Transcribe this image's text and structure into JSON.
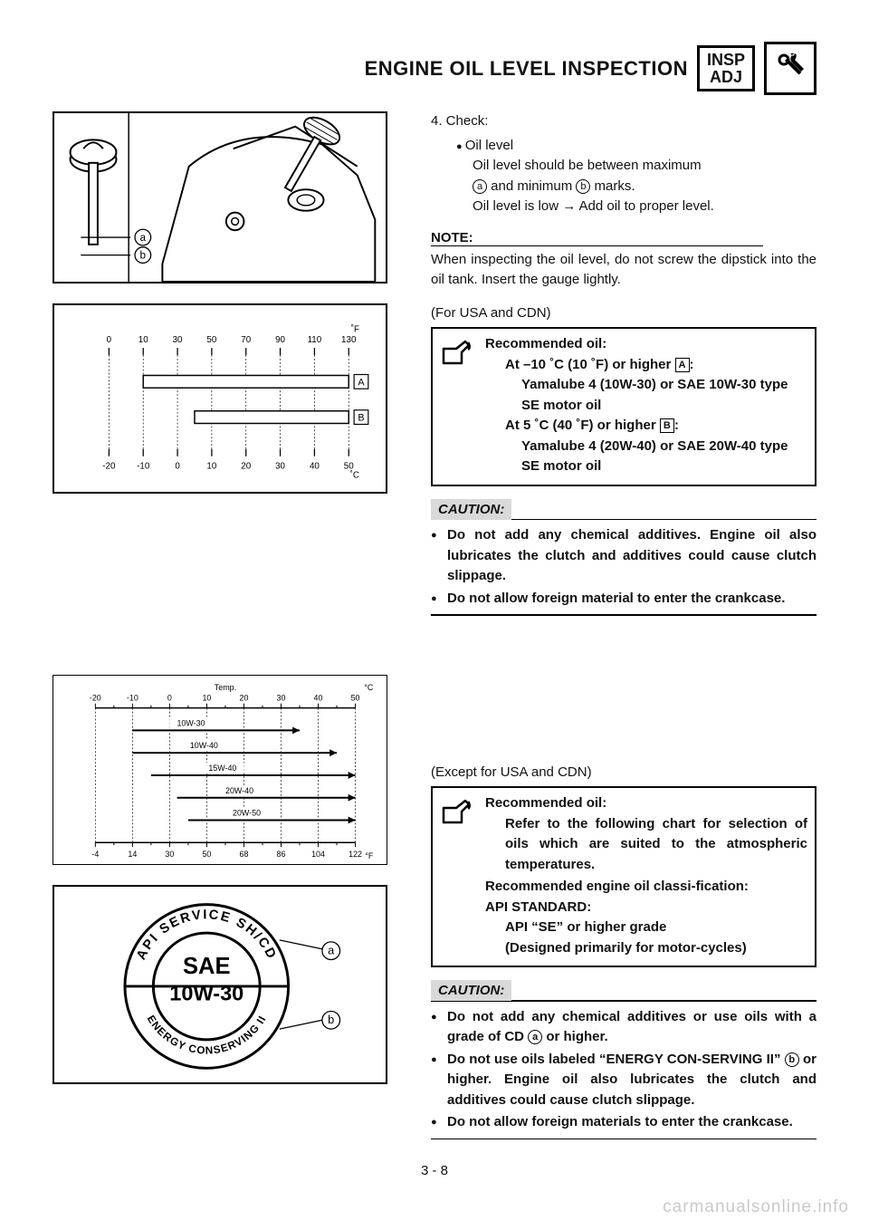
{
  "header": {
    "title": "ENGINE OIL LEVEL INSPECTION",
    "badge_top": "INSP",
    "badge_bot": "ADJ"
  },
  "step4": {
    "label": "4.   Check:",
    "bullet": "Oil level",
    "line1": "Oil level should be between maximum",
    "line2_pre": "",
    "line2_mark_a": "a",
    "line2_mid": " and minimum ",
    "line2_mark_b": "b",
    "line2_post": " marks.",
    "line3": "Oil level is low → Add oil to proper level."
  },
  "note": {
    "head": "NOTE:",
    "body": "When inspecting the oil level, do not screw the dipstick into the oil tank. Insert the gauge lightly."
  },
  "usa": {
    "head": "(For USA and CDN)",
    "box": {
      "t0": "Recommended oil:",
      "a_label": "At –10 ˚C (10 ˚F) or higher ",
      "a_mark": "A",
      "a_colon": ":",
      "a_line": "Yamalube 4 (10W-30) or SAE 10W-30 type SE motor oil",
      "b_label": "At 5 ˚C (40 ˚F) or higher ",
      "b_mark": "B",
      "b_colon": ":",
      "b_line": "Yamalube 4 (20W-40) or SAE 20W-40 type SE motor oil"
    },
    "caution_head": "CAUTION:",
    "caution_items": [
      "Do not add any chemical additives. Engine oil also lubricates the clutch and additives could cause clutch slippage.",
      "Do not allow foreign material to enter the crankcase."
    ]
  },
  "except": {
    "head": "(Except for USA and CDN)",
    "box": {
      "t0": "Recommended oil:",
      "p1": "Refer to the following chart for selection of oils which are suited to the atmospheric temperatures.",
      "t1": "Recommended engine oil classi-fication:",
      "t2": "API STANDARD:",
      "p2a": "API “SE” or higher grade",
      "p2b": "(Designed primarily for motor-cycles)"
    },
    "caution_head": "CAUTION:",
    "caution_items_pre": [
      "Do not add any chemical additives or use oils with a grade of CD "
    ],
    "caution_item1_mark": "a",
    "caution_item1_post": " or higher.",
    "caution_item2_pre": "Do not use oils labeled “ENERGY CON-SERVING II” ",
    "caution_item2_mark": "b",
    "caution_item2_post": " or higher. Engine oil also lubricates the clutch and additives could cause clutch slippage.",
    "caution_item3": "Do not allow foreign materials to enter the crankcase."
  },
  "page_number": "3 - 8",
  "watermark": "carmanualsonline.info",
  "fig_dipstick": {
    "labels": {
      "a": "a",
      "b": "b"
    }
  },
  "chart1": {
    "type": "range-bar",
    "f_scale": {
      "ticks": [
        0,
        10,
        30,
        50,
        70,
        90,
        110,
        130
      ],
      "unit": "˚F"
    },
    "c_scale": {
      "ticks": [
        -20,
        -10,
        0,
        10,
        20,
        30,
        40,
        50
      ],
      "unit": "˚C"
    },
    "bars": [
      {
        "id": "A",
        "c_min": -10,
        "c_max": 50
      },
      {
        "id": "B",
        "c_min": 5,
        "c_max": 50
      }
    ],
    "colors": {
      "bg": "#ffffff",
      "grid": "#000000",
      "bar_fill": "#ffffff",
      "bar_stroke": "#000000",
      "text": "#000000"
    },
    "fontsize": 10
  },
  "chart2": {
    "type": "range-bar",
    "title": "Temp.",
    "c_scale": {
      "ticks": [
        -20,
        -10,
        0,
        10,
        20,
        30,
        40,
        50
      ],
      "unit": "°C"
    },
    "f_scale": {
      "ticks": [
        -4,
        14,
        30,
        50,
        68,
        86,
        104,
        122
      ],
      "unit": "°F"
    },
    "oils": [
      {
        "name": "10W-30",
        "c_min": -10,
        "c_max": 35
      },
      {
        "name": "10W-40",
        "c_min": -10,
        "c_max": 45
      },
      {
        "name": "15W-40",
        "c_min": -5,
        "c_max": 50
      },
      {
        "name": "20W-40",
        "c_min": 2,
        "c_max": 50
      },
      {
        "name": "20W-50",
        "c_min": 5,
        "c_max": 50
      }
    ],
    "colors": {
      "bg": "#ffffff",
      "grid": "#000000",
      "bar_fill": "#000000",
      "text": "#000000"
    },
    "fontsize": 10,
    "label_fontsize": 9
  },
  "fig_sae": {
    "outer_top": "API SERVICE SH/CD",
    "center_top": "SAE",
    "center_bot": "10W-30",
    "outer_bot": "ENERGY CONSERVING II",
    "labels": {
      "a": "a",
      "b": "b"
    }
  }
}
